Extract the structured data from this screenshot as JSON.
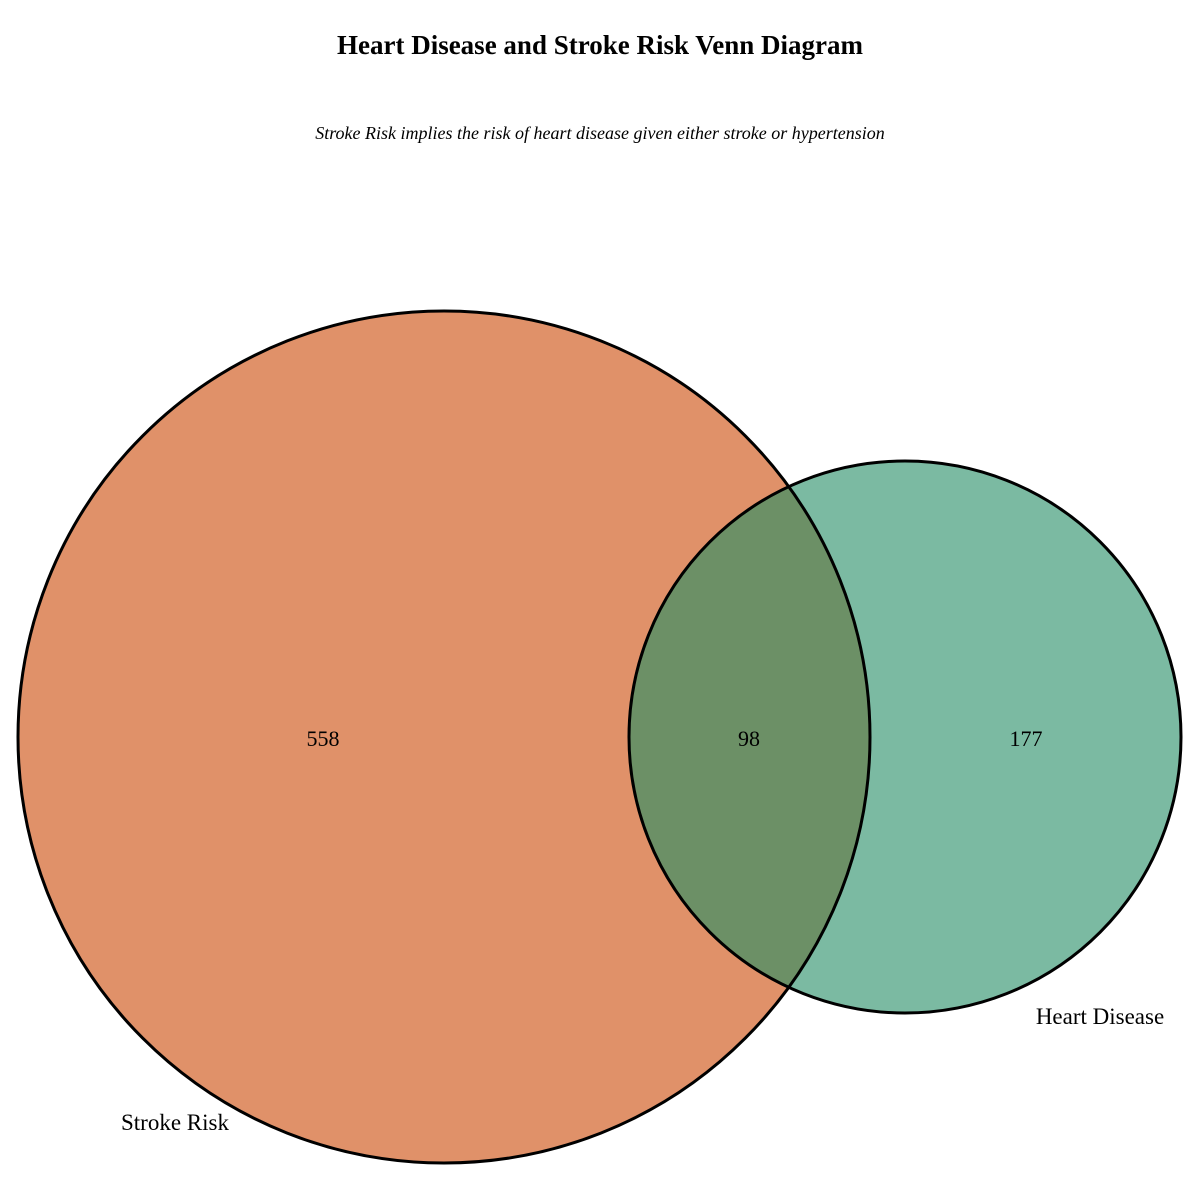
{
  "title": "Heart Disease and Stroke Risk Venn Diagram",
  "subtitle": "Stroke Risk implies the risk of heart disease given either stroke or hypertension",
  "sets": [
    {
      "name": "Stroke Risk",
      "only_count": "558",
      "color": "#e09169"
    },
    {
      "name": "Heart Disease",
      "only_count": "177",
      "color": "#7bbaa2"
    }
  ],
  "intersection": {
    "count": "98",
    "color": "#6c9066"
  },
  "stroke_color": "#000000"
}
